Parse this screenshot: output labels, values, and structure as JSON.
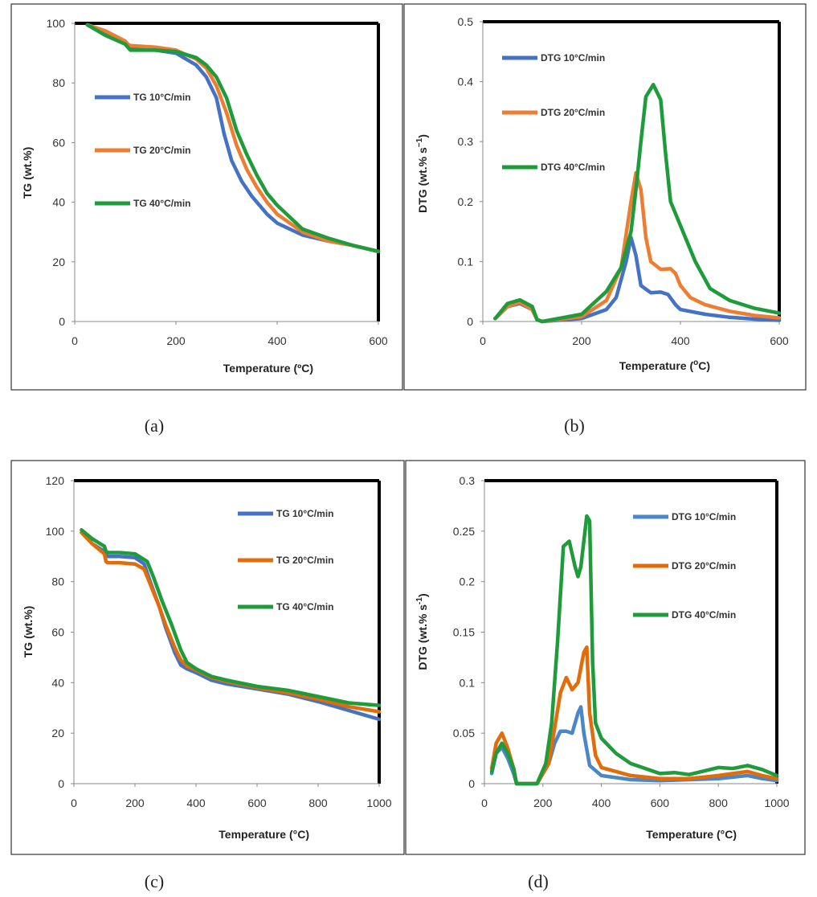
{
  "chart_data": [
    {
      "id": "a",
      "panel_label": "(a)",
      "type": "line",
      "xlabel": "Temperature (ºC)",
      "ylabel": "TG (wt.%)",
      "xlim": [
        0,
        600
      ],
      "ylim": [
        0,
        100
      ],
      "xticks": [
        "0",
        "200",
        "400",
        "600"
      ],
      "yticks": [
        "0",
        "20",
        "40",
        "60",
        "80",
        "100"
      ],
      "legend_position": "left",
      "series": [
        {
          "name": "TG 10°C/min",
          "color": "#4472C4",
          "x": [
            25,
            60,
            100,
            105,
            110,
            160,
            200,
            240,
            260,
            280,
            295,
            310,
            330,
            350,
            380,
            400,
            450,
            500,
            550,
            600
          ],
          "y": [
            99.5,
            97,
            93,
            92,
            91.5,
            91,
            90,
            86,
            82,
            75,
            63,
            54,
            47,
            42,
            36,
            33,
            29,
            27,
            25.5,
            23.5
          ]
        },
        {
          "name": "TG 20°C/min",
          "color": "#ED7D31",
          "x": [
            25,
            60,
            100,
            105,
            110,
            160,
            200,
            240,
            260,
            280,
            300,
            320,
            340,
            360,
            380,
            400,
            450,
            500,
            550,
            600
          ],
          "y": [
            99.5,
            97.5,
            94,
            93,
            92.5,
            92,
            91,
            88,
            85,
            79,
            70,
            59,
            51,
            45,
            40,
            36,
            30,
            27,
            25.5,
            23.5
          ]
        },
        {
          "name": "TG 40°C/min",
          "color": "#1E9B3A",
          "x": [
            25,
            60,
            100,
            105,
            110,
            160,
            200,
            240,
            260,
            280,
            300,
            320,
            340,
            360,
            380,
            400,
            450,
            500,
            550,
            600
          ],
          "y": [
            99.5,
            96,
            93,
            92,
            91,
            91,
            90.5,
            88.5,
            86,
            82,
            75,
            64,
            56,
            49,
            43,
            39,
            31,
            28,
            25.5,
            23.5
          ]
        }
      ]
    },
    {
      "id": "b",
      "panel_label": "(b)",
      "type": "line",
      "xlabel": "Temperature (",
      "xlabel_sup": "o",
      "xlabel_end": "C)",
      "ylabel": "DTG (wt.% s",
      "ylabel_sup": "−1",
      "ylabel_end": ")",
      "xlim": [
        0,
        600
      ],
      "ylim": [
        0,
        0.5
      ],
      "xticks": [
        "0",
        "200",
        "400",
        "600"
      ],
      "yticks": [
        "0",
        "0.1",
        "0.2",
        "0.3",
        "0.4",
        "0.5"
      ],
      "legend_position": "top-left",
      "series": [
        {
          "name": "DTG 10°C/min",
          "color": "#4472C4",
          "x": [
            25,
            50,
            75,
            100,
            110,
            120,
            200,
            250,
            270,
            290,
            300,
            310,
            320,
            340,
            360,
            375,
            390,
            400,
            450,
            500,
            550,
            600
          ],
          "y": [
            0.005,
            0.025,
            0.03,
            0.02,
            0.003,
            0,
            0.005,
            0.02,
            0.04,
            0.1,
            0.14,
            0.11,
            0.06,
            0.048,
            0.049,
            0.045,
            0.028,
            0.02,
            0.012,
            0.007,
            0.004,
            0.002
          ]
        },
        {
          "name": "DTG 20°C/min",
          "color": "#ED7D31",
          "x": [
            25,
            50,
            75,
            100,
            110,
            120,
            200,
            250,
            280,
            300,
            310,
            320,
            330,
            340,
            360,
            380,
            390,
            400,
            420,
            450,
            500,
            550,
            600
          ],
          "y": [
            0.005,
            0.025,
            0.032,
            0.02,
            0.003,
            0,
            0.008,
            0.035,
            0.09,
            0.2,
            0.248,
            0.22,
            0.14,
            0.1,
            0.087,
            0.088,
            0.08,
            0.06,
            0.04,
            0.028,
            0.017,
            0.01,
            0.006
          ]
        },
        {
          "name": "DTG 40°C/min",
          "color": "#1E9B3A",
          "x": [
            25,
            50,
            75,
            100,
            110,
            120,
            200,
            250,
            280,
            300,
            310,
            320,
            330,
            345,
            360,
            370,
            380,
            400,
            430,
            460,
            500,
            550,
            600
          ],
          "y": [
            0.005,
            0.03,
            0.036,
            0.025,
            0.003,
            0,
            0.012,
            0.05,
            0.09,
            0.15,
            0.22,
            0.3,
            0.375,
            0.395,
            0.37,
            0.28,
            0.2,
            0.16,
            0.1,
            0.055,
            0.035,
            0.022,
            0.014
          ]
        }
      ]
    },
    {
      "id": "c",
      "panel_label": "(c)",
      "type": "line",
      "xlabel": "Temperature (°C)",
      "ylabel": "TG (wt.%)",
      "xlim": [
        0,
        1000
      ],
      "ylim": [
        0,
        120
      ],
      "xticks": [
        "0",
        "200",
        "400",
        "600",
        "800",
        "1000"
      ],
      "yticks": [
        "0",
        "20",
        "40",
        "60",
        "80",
        "100",
        "120"
      ],
      "legend_position": "top-right",
      "series": [
        {
          "name": "TG 10°C/min",
          "color": "#4472C4",
          "x": [
            25,
            60,
            100,
            105,
            110,
            150,
            200,
            230,
            250,
            280,
            300,
            330,
            350,
            370,
            400,
            450,
            500,
            600,
            700,
            800,
            900,
            1000
          ],
          "y": [
            99.5,
            95,
            92,
            91,
            90,
            90,
            89.5,
            87,
            80,
            70,
            62,
            52,
            47,
            45.5,
            44,
            41,
            39.5,
            37.5,
            35.5,
            32.5,
            29,
            25.5
          ]
        },
        {
          "name": "TG 20°C/min",
          "color": "#E36C0A",
          "x": [
            25,
            60,
            100,
            105,
            110,
            150,
            200,
            230,
            250,
            280,
            300,
            330,
            350,
            370,
            400,
            450,
            500,
            600,
            700,
            800,
            900,
            1000
          ],
          "y": [
            99.5,
            95,
            91,
            88,
            87.5,
            87.5,
            87,
            85,
            79,
            70,
            63,
            54,
            49,
            46.5,
            45,
            42,
            40.5,
            38,
            36,
            33.5,
            30.5,
            28.5
          ]
        },
        {
          "name": "TG 40°C/min",
          "color": "#1E9B3A",
          "x": [
            25,
            60,
            100,
            105,
            110,
            150,
            200,
            240,
            260,
            290,
            320,
            350,
            370,
            400,
            450,
            500,
            600,
            700,
            800,
            900,
            1000
          ],
          "y": [
            100.5,
            97,
            94,
            92,
            91.5,
            91.5,
            91,
            88,
            82,
            72,
            63,
            53,
            48,
            45.5,
            42.5,
            41,
            38.5,
            37,
            34.5,
            32,
            31
          ]
        }
      ]
    },
    {
      "id": "d",
      "panel_label": "(d)",
      "type": "line",
      "xlabel": "Temperature (°C)",
      "ylabel": "DTG (wt.% s",
      "ylabel_sup": "-1",
      "ylabel_end": ")",
      "xlim": [
        0,
        1000
      ],
      "ylim": [
        0,
        0.3
      ],
      "xticks": [
        "0",
        "200",
        "400",
        "600",
        "800",
        "1000"
      ],
      "yticks": [
        "0",
        "0.05",
        "0.1",
        "0.15",
        "0.2",
        "0.25",
        "0.3"
      ],
      "legend_position": "top-right",
      "series": [
        {
          "name": "DTG 10°C/min",
          "color": "#4A86C8",
          "x": [
            25,
            40,
            60,
            80,
            100,
            110,
            180,
            220,
            240,
            260,
            280,
            300,
            320,
            330,
            340,
            360,
            400,
            500,
            600,
            700,
            800,
            900,
            950,
            1000
          ],
          "y": [
            0.01,
            0.03,
            0.036,
            0.025,
            0.01,
            0,
            0,
            0.02,
            0.04,
            0.052,
            0.052,
            0.05,
            0.07,
            0.076,
            0.05,
            0.018,
            0.008,
            0.004,
            0.003,
            0.004,
            0.005,
            0.008,
            0.005,
            0.003
          ]
        },
        {
          "name": "DTG 20°C/min",
          "color": "#E36C0A",
          "x": [
            25,
            40,
            60,
            80,
            100,
            110,
            180,
            220,
            240,
            260,
            280,
            300,
            320,
            340,
            350,
            360,
            380,
            400,
            500,
            600,
            700,
            800,
            900,
            950,
            1000
          ],
          "y": [
            0.015,
            0.04,
            0.05,
            0.035,
            0.015,
            0,
            0,
            0.02,
            0.055,
            0.09,
            0.105,
            0.093,
            0.1,
            0.13,
            0.135,
            0.07,
            0.028,
            0.016,
            0.008,
            0.005,
            0.005,
            0.008,
            0.012,
            0.008,
            0.005
          ]
        },
        {
          "name": "DTG 40°C/min",
          "color": "#1E9B3A",
          "x": [
            25,
            40,
            60,
            80,
            100,
            110,
            180,
            210,
            230,
            250,
            270,
            290,
            310,
            320,
            330,
            350,
            360,
            370,
            380,
            400,
            450,
            500,
            600,
            650,
            700,
            800,
            850,
            900,
            950,
            1000
          ],
          "y": [
            0.012,
            0.03,
            0.04,
            0.03,
            0.015,
            0,
            0,
            0.02,
            0.06,
            0.14,
            0.235,
            0.24,
            0.215,
            0.205,
            0.215,
            0.265,
            0.26,
            0.12,
            0.06,
            0.045,
            0.03,
            0.02,
            0.01,
            0.011,
            0.009,
            0.016,
            0.015,
            0.018,
            0.014,
            0.008
          ]
        }
      ]
    }
  ]
}
